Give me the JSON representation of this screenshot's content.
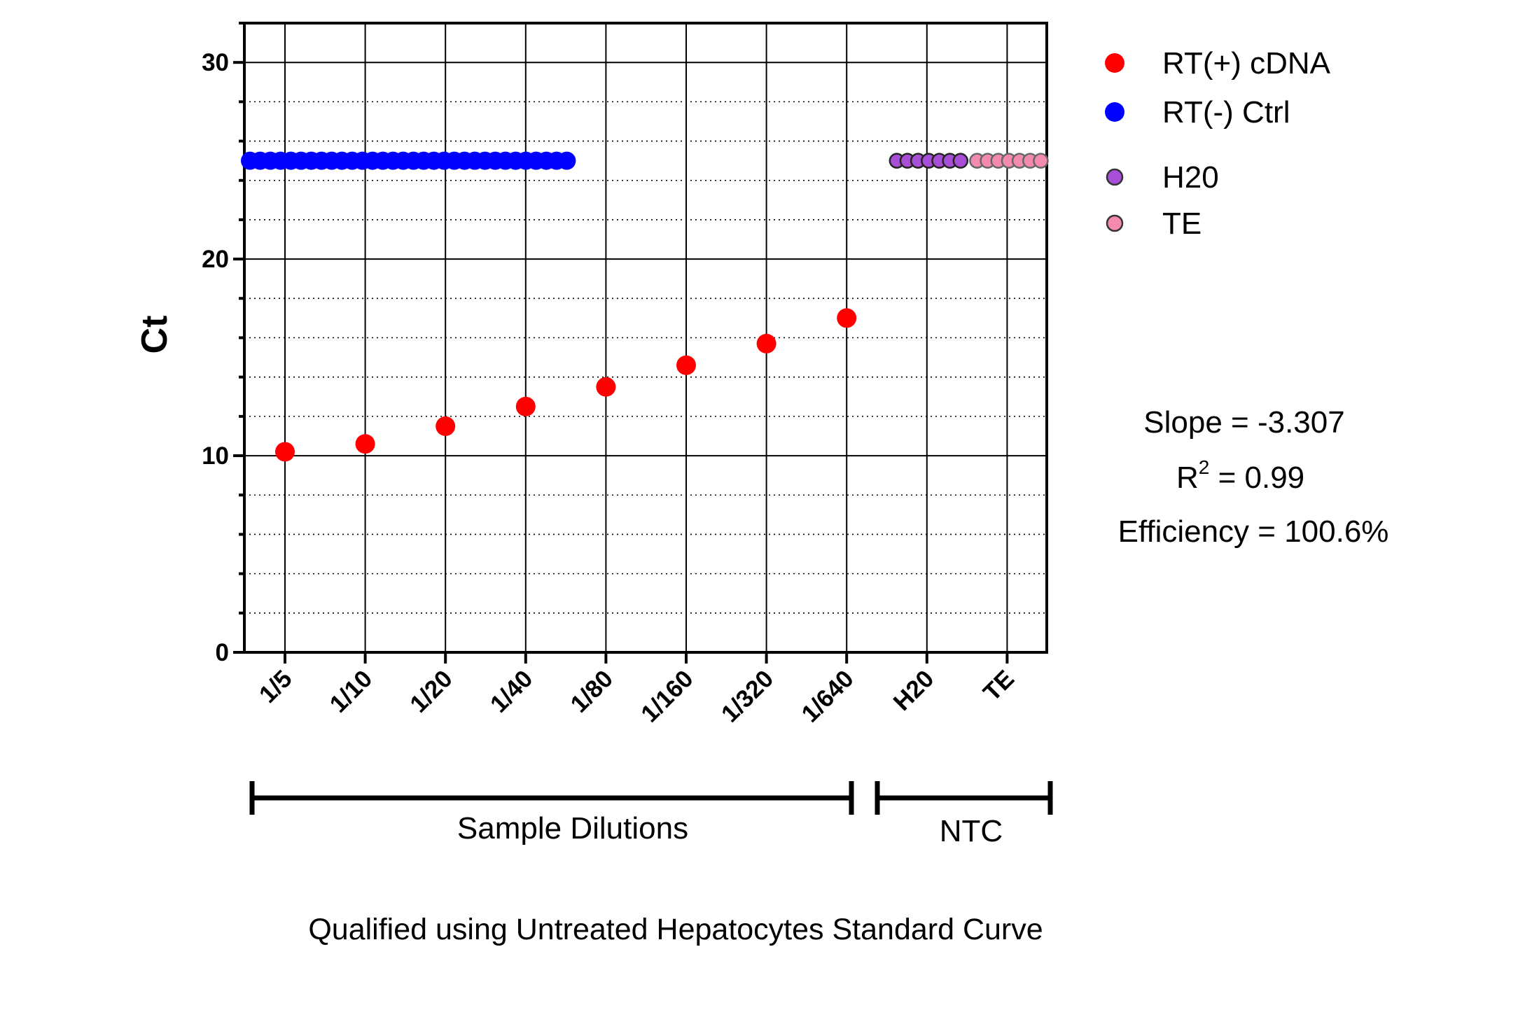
{
  "chart_data": {
    "type": "scatter",
    "title": "",
    "ylabel": "Ct",
    "xlabel": "",
    "ylim": [
      0,
      32
    ],
    "y_ticks": [
      0,
      10,
      20,
      30
    ],
    "y_tick_labels": [
      "0",
      "10",
      "20",
      "30"
    ],
    "grid": "dotted horizontal minor, solid at major ticks and category positions",
    "categories": [
      "1/5",
      "1/10",
      "1/20",
      "1/40",
      "1/80",
      "1/160",
      "1/320",
      "1/640",
      "H20",
      "TE"
    ],
    "series": [
      {
        "name": "RT(+) cDNA",
        "color": "#ff0000",
        "points": [
          {
            "category": "1/5",
            "y": 10.2
          },
          {
            "category": "1/10",
            "y": 10.6
          },
          {
            "category": "1/20",
            "y": 11.5
          },
          {
            "category": "1/40",
            "y": 12.5
          },
          {
            "category": "1/80",
            "y": 13.5
          },
          {
            "category": "1/160",
            "y": 14.6
          },
          {
            "category": "1/320",
            "y": 15.7
          },
          {
            "category": "1/640",
            "y": 17.0
          }
        ]
      },
      {
        "name": "RT(-) Ctrl",
        "color": "#0000ff",
        "y": 25,
        "x_range_categories": [
          "1/5",
          "1/80"
        ],
        "count": 32
      },
      {
        "name": "H20",
        "color": "#a64fd6",
        "y": 25,
        "x_range_categories": [
          "H20",
          "H20"
        ],
        "count": 7
      },
      {
        "name": "TE",
        "color": "#f48ab0",
        "y": 25,
        "x_range_categories": [
          "TE",
          "TE"
        ],
        "count": 7
      }
    ],
    "legend": [
      "RT(+) cDNA",
      "RT(-) Ctrl",
      "H20",
      "TE"
    ],
    "legend_position": "right",
    "annotations": {
      "slope": "Slope = -3.307",
      "r2_prefix": "R",
      "r2_sup": "2",
      "r2_suffix": " = 0.99",
      "efficiency": "Efficiency = 100.6%"
    },
    "groups": [
      {
        "label": "Sample Dilutions",
        "from": "1/5",
        "to": "1/640"
      },
      {
        "label": "NTC",
        "from": "H20",
        "to": "TE"
      }
    ],
    "caption": "Qualified using Untreated Hepatocytes Standard Curve"
  }
}
